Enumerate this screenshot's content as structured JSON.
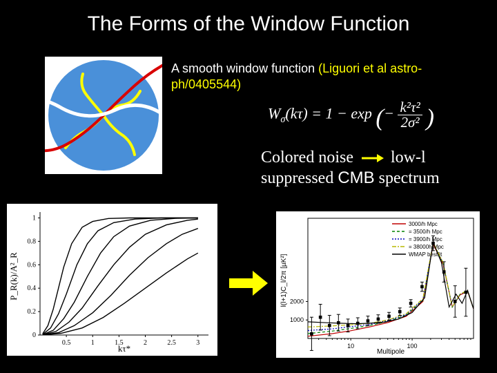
{
  "title": "The Forms of the Window Function",
  "subtitle_prefix": "A smooth window function ",
  "subtitle_ref": "(Liguori et al astro-ph/0405544)",
  "formula_html": "W<sub>σ</sub>(kτ) = 1 − exp ( − k²τ² / 2σ² )",
  "caption_part1": "Colored noise",
  "caption_part2": "low-l suppressed ",
  "caption_part3": "CMB",
  "caption_part4": " spectrum",
  "illustration": {
    "background": "#ffffff",
    "circle_fill": "#4a90d9",
    "squiggle_colors": {
      "yellow": "#ffff00",
      "red": "#d80000",
      "white": "#ffffff"
    },
    "stroke_width": 4
  },
  "left_chart": {
    "type": "line",
    "background_color": "#ffffff",
    "xlim": [
      0,
      3.2
    ],
    "ylim": [
      0,
      1.05
    ],
    "xticks": [
      0.5,
      1,
      1.5,
      2,
      2.5,
      3
    ],
    "yticks": [
      0,
      0.2,
      0.4,
      0.6,
      0.8,
      1
    ],
    "xlabel": "kτ_*",
    "ylabel": "P_R(k)/A²_R",
    "label_fontsize": 12,
    "tick_fontsize": 10,
    "line_color": "#000000",
    "line_width": 1.4,
    "curves": [
      {
        "sigma": 0.35,
        "x": [
          0.05,
          0.15,
          0.25,
          0.35,
          0.45,
          0.6,
          0.8,
          1.0,
          1.3,
          1.7,
          2.2,
          3.0
        ],
        "y": [
          0.01,
          0.08,
          0.22,
          0.4,
          0.58,
          0.78,
          0.92,
          0.97,
          0.995,
          1,
          1,
          1
        ]
      },
      {
        "sigma": 0.55,
        "x": [
          0.05,
          0.2,
          0.35,
          0.5,
          0.7,
          0.9,
          1.1,
          1.4,
          1.8,
          2.3,
          3.0
        ],
        "y": [
          0.005,
          0.06,
          0.18,
          0.35,
          0.6,
          0.78,
          0.89,
          0.96,
          0.99,
          1,
          1
        ]
      },
      {
        "sigma": 0.8,
        "x": [
          0.05,
          0.25,
          0.45,
          0.65,
          0.9,
          1.15,
          1.4,
          1.7,
          2.1,
          2.6,
          3.0
        ],
        "y": [
          0.003,
          0.04,
          0.14,
          0.28,
          0.5,
          0.7,
          0.84,
          0.93,
          0.98,
          0.997,
          1
        ]
      },
      {
        "sigma": 1.1,
        "x": [
          0.05,
          0.3,
          0.55,
          0.8,
          1.1,
          1.4,
          1.7,
          2.0,
          2.4,
          2.8,
          3.0
        ],
        "y": [
          0.002,
          0.03,
          0.11,
          0.23,
          0.42,
          0.6,
          0.75,
          0.86,
          0.94,
          0.98,
          0.99
        ]
      },
      {
        "sigma": 1.5,
        "x": [
          0.05,
          0.35,
          0.65,
          1.0,
          1.35,
          1.7,
          2.05,
          2.4,
          2.7,
          3.0
        ],
        "y": [
          0.001,
          0.02,
          0.08,
          0.19,
          0.34,
          0.51,
          0.66,
          0.78,
          0.86,
          0.91
        ]
      },
      {
        "sigma": 2.0,
        "x": [
          0.05,
          0.4,
          0.8,
          1.2,
          1.6,
          2.0,
          2.4,
          2.8,
          3.0
        ],
        "y": [
          0.001,
          0.015,
          0.06,
          0.15,
          0.27,
          0.4,
          0.53,
          0.65,
          0.7
        ]
      }
    ]
  },
  "right_chart": {
    "type": "line_with_errorbars",
    "background_color": "#ffffff",
    "xscale": "log",
    "xlim": [
      2,
      1000
    ],
    "ylim": [
      0,
      6500
    ],
    "yticks": [
      1000,
      2000
    ],
    "yticks_labels": [
      "1000",
      "2000"
    ],
    "xticks": [
      10,
      100
    ],
    "xlabel": "Multipole",
    "ylabel": "l(l+1)C_l/2π  [µK²]",
    "label_fontsize": 10,
    "tick_fontsize": 9,
    "error_color": "#000000",
    "legend_items": [
      {
        "label": "3000/h Mpc",
        "color": "#c00000",
        "dash": "none"
      },
      {
        "label": "= 3500/h Mpc",
        "color": "#008000",
        "dash": "4,3"
      },
      {
        "label": "= 3900/h Mpc",
        "color": "#0000c0",
        "dash": "2,2"
      },
      {
        "label": "= 38000h Mpc",
        "color": "#b8b800",
        "dash": "6,2,2,2"
      },
      {
        "label": "WMAP bestfit",
        "color": "#000000",
        "dash": "none"
      }
    ],
    "legend_fontsize": 8,
    "curve_main": {
      "color": "#000000",
      "x": [
        2,
        4,
        7,
        12,
        20,
        35,
        60,
        100,
        160,
        220,
        300,
        400,
        520,
        650,
        800,
        1000
      ],
      "y": [
        900,
        850,
        820,
        800,
        820,
        880,
        1050,
        1400,
        2200,
        5200,
        4100,
        1700,
        2400,
        1900,
        2600,
        1600
      ]
    },
    "curve_colored": [
      {
        "color": "#c00000",
        "dash": "none",
        "x": [
          2,
          5,
          10,
          20,
          40,
          80,
          150,
          220,
          320,
          450,
          600,
          800,
          1000
        ],
        "y": [
          120,
          260,
          420,
          620,
          860,
          1200,
          2000,
          5100,
          4000,
          1700,
          2350,
          2550,
          1600
        ]
      },
      {
        "color": "#008000",
        "dash": "4,3",
        "x": [
          2,
          5,
          10,
          20,
          40,
          80,
          150,
          220,
          320,
          450,
          600,
          800,
          1000
        ],
        "y": [
          260,
          400,
          540,
          700,
          920,
          1260,
          2050,
          5150,
          4050,
          1700,
          2380,
          2570,
          1600
        ]
      },
      {
        "color": "#0000c0",
        "dash": "2,2",
        "x": [
          2,
          5,
          10,
          20,
          40,
          80,
          150,
          220,
          320,
          450,
          600,
          800,
          1000
        ],
        "y": [
          430,
          520,
          640,
          760,
          960,
          1300,
          2100,
          5180,
          4080,
          1700,
          2390,
          2590,
          1600
        ]
      },
      {
        "color": "#b8b800",
        "dash": "6,2,2,2",
        "x": [
          2,
          5,
          10,
          20,
          40,
          80,
          150,
          220,
          320,
          450,
          600,
          800,
          1000
        ],
        "y": [
          620,
          680,
          740,
          810,
          1000,
          1340,
          2150,
          5200,
          4100,
          1700,
          2400,
          2600,
          1600
        ]
      }
    ],
    "error_points": [
      {
        "x": 2.3,
        "y": 250,
        "err": 900
      },
      {
        "x": 3.2,
        "y": 1150,
        "err": 700
      },
      {
        "x": 4.5,
        "y": 700,
        "err": 550
      },
      {
        "x": 6.3,
        "y": 850,
        "err": 450
      },
      {
        "x": 9,
        "y": 700,
        "err": 350
      },
      {
        "x": 13,
        "y": 820,
        "err": 300
      },
      {
        "x": 19,
        "y": 950,
        "err": 260
      },
      {
        "x": 28,
        "y": 1050,
        "err": 230
      },
      {
        "x": 42,
        "y": 1200,
        "err": 210
      },
      {
        "x": 63,
        "y": 1450,
        "err": 200
      },
      {
        "x": 95,
        "y": 1900,
        "err": 200
      },
      {
        "x": 145,
        "y": 2800,
        "err": 250
      },
      {
        "x": 220,
        "y": 5150,
        "err": 400
      },
      {
        "x": 330,
        "y": 3600,
        "err": 550
      },
      {
        "x": 500,
        "y": 2000,
        "err": 850
      },
      {
        "x": 750,
        "y": 2500,
        "err": 1300
      }
    ]
  },
  "arrow_color": "#ffff00"
}
